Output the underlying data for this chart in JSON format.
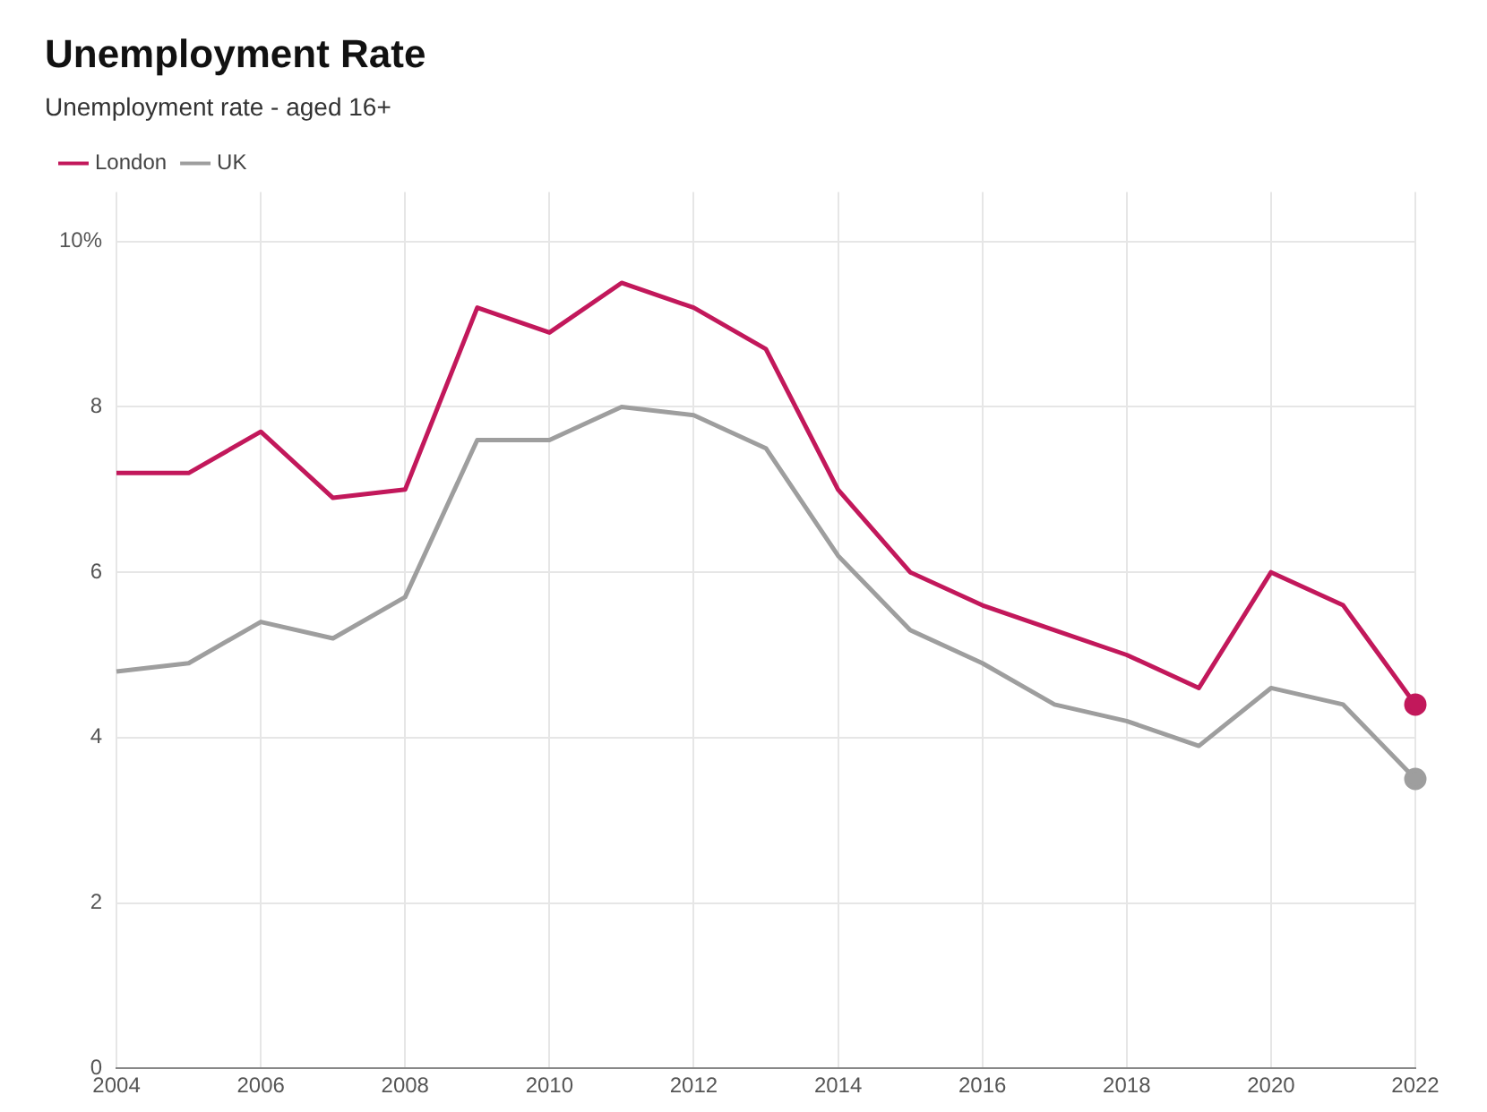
{
  "chart_data": {
    "type": "line",
    "title": "Unemployment Rate",
    "subtitle": "Unemployment rate - aged 16+",
    "x": [
      2004,
      2005,
      2006,
      2007,
      2008,
      2009,
      2010,
      2011,
      2012,
      2013,
      2014,
      2015,
      2016,
      2017,
      2018,
      2019,
      2020,
      2021,
      2022
    ],
    "series": [
      {
        "name": "London",
        "color": "#c2185b",
        "values": [
          7.2,
          7.2,
          7.7,
          6.9,
          7.0,
          9.2,
          8.9,
          9.5,
          9.2,
          8.7,
          7.0,
          6.0,
          5.6,
          5.3,
          5.0,
          4.6,
          6.0,
          5.6,
          4.4
        ]
      },
      {
        "name": "UK",
        "color": "#9e9e9e",
        "values": [
          4.8,
          4.9,
          5.4,
          5.2,
          5.7,
          7.6,
          7.6,
          8.0,
          7.9,
          7.5,
          6.2,
          5.3,
          4.9,
          4.4,
          4.2,
          3.9,
          4.6,
          4.4,
          3.5
        ]
      }
    ],
    "xlim": [
      2004,
      2022
    ],
    "xticks": [
      2004,
      2006,
      2008,
      2010,
      2012,
      2014,
      2016,
      2018,
      2020,
      2022
    ],
    "ylim": [
      0,
      10.6
    ],
    "yticks": [
      0,
      2,
      4,
      6,
      8,
      {
        "value": 10,
        "label": "10%"
      }
    ],
    "grid": true,
    "legend": "top left",
    "line_style": "solid"
  }
}
